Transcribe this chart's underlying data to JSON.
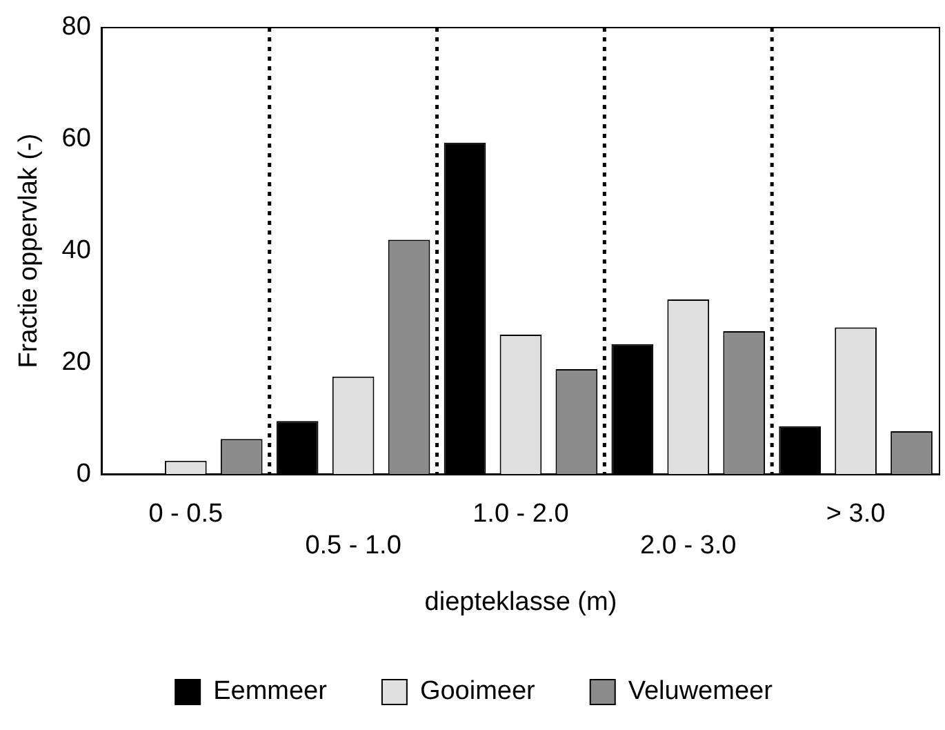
{
  "chart_data": {
    "type": "bar",
    "xlabel": "diepteklasse (m)",
    "ylabel": "Fractie oppervlak (-)",
    "categories": [
      "0 - 0.5",
      "0.5 - 1.0",
      "1.0 - 2.0",
      "2.0 - 3.0",
      "> 3.0"
    ],
    "series": [
      {
        "name": "Eemmeer",
        "color": "#000000",
        "values": [
          0,
          9.5,
          59.4,
          23.3,
          8.6
        ]
      },
      {
        "name": "Gooimeer",
        "color": "#e0e0e0",
        "values": [
          2.4,
          17.5,
          25,
          31.3,
          26.3
        ]
      },
      {
        "name": "Veluwemeer",
        "color": "#8c8c8c",
        "values": [
          6.3,
          42,
          18.8,
          25.6,
          7.7
        ]
      }
    ],
    "ylim": [
      0,
      80
    ],
    "yticks": [
      0,
      20,
      40,
      60,
      80
    ],
    "grid": false,
    "legend": "bottom"
  }
}
